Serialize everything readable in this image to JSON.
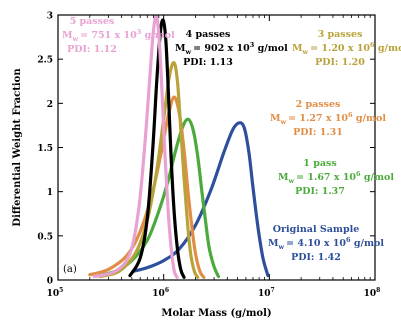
{
  "chart_data": {
    "type": "line",
    "xlabel": "Molar Mass (g/mol)",
    "ylabel": "Differential Weight Fraction",
    "xscale": "log",
    "xlim": [
      100000,
      100000000
    ],
    "ylim": [
      0,
      3
    ],
    "x_ticks": [
      100000,
      1000000,
      10000000,
      100000000
    ],
    "x_tick_labels": [
      "10",
      "10",
      "10",
      "10"
    ],
    "x_tick_exponents": [
      "5",
      "6",
      "7",
      "8"
    ],
    "y_ticks": [
      0,
      0.5,
      1,
      1.5,
      2,
      2.5,
      3
    ],
    "y_tick_labels": [
      "0",
      "0.5",
      "1",
      "1.5",
      "2",
      "2.5",
      "3"
    ],
    "panel_label": "(a)",
    "grid": false,
    "legend": "none",
    "series": [
      {
        "id": "orig",
        "color": "#2e4f9c",
        "annotation": [
          "Original Sample",
          "M",
          "w",
          "= 4.10 x 10",
          "6",
          " g/mol",
          "PDI: 1.42"
        ],
        "points": [
          [
            520000,
            0.1
          ],
          [
            700000,
            0.14
          ],
          [
            1000000,
            0.22
          ],
          [
            1400000,
            0.35
          ],
          [
            2000000,
            0.62
          ],
          [
            2800000,
            1.02
          ],
          [
            3700000,
            1.44
          ],
          [
            4500000,
            1.7
          ],
          [
            5200000,
            1.78
          ],
          [
            5800000,
            1.72
          ],
          [
            6400000,
            1.45
          ],
          [
            7000000,
            1.05
          ],
          [
            7800000,
            0.6
          ],
          [
            8700000,
            0.25
          ],
          [
            9700000,
            0.05
          ]
        ]
      },
      {
        "id": "p1",
        "color": "#4caa3c",
        "annotation": [
          "1 pass",
          "M",
          "w",
          "= 1.67 x 10",
          "6",
          " g/mol",
          "PDI: 1.37"
        ],
        "points": [
          [
            240000,
            0.05
          ],
          [
            350000,
            0.1
          ],
          [
            500000,
            0.22
          ],
          [
            700000,
            0.45
          ],
          [
            900000,
            0.78
          ],
          [
            1100000,
            1.12
          ],
          [
            1300000,
            1.47
          ],
          [
            1500000,
            1.72
          ],
          [
            1700000,
            1.82
          ],
          [
            1900000,
            1.7
          ],
          [
            2100000,
            1.4
          ],
          [
            2300000,
            1.0
          ],
          [
            2500000,
            0.65
          ],
          [
            2700000,
            0.36
          ],
          [
            3000000,
            0.15
          ],
          [
            3300000,
            0.04
          ]
        ]
      },
      {
        "id": "p2",
        "color": "#e08e45",
        "annotation": [
          "2 passes",
          "M",
          "w",
          "= 1.27 x 10",
          "6",
          " g/mol",
          "PDI: 1.31"
        ],
        "points": [
          [
            200000,
            0.06
          ],
          [
            300000,
            0.12
          ],
          [
            450000,
            0.28
          ],
          [
            600000,
            0.55
          ],
          [
            780000,
            0.98
          ],
          [
            950000,
            1.45
          ],
          [
            1100000,
            1.85
          ],
          [
            1250000,
            2.07
          ],
          [
            1400000,
            1.9
          ],
          [
            1550000,
            1.5
          ],
          [
            1700000,
            1.0
          ],
          [
            1850000,
            0.6
          ],
          [
            2000000,
            0.3
          ],
          [
            2200000,
            0.1
          ],
          [
            2400000,
            0.03
          ]
        ]
      },
      {
        "id": "p3",
        "color": "#b8a23a",
        "annotation": [
          "3 passes",
          "M",
          "w",
          "= 1.20 x 10",
          "6",
          " g/mol",
          "PDI: 1.20"
        ],
        "points": [
          [
            250000,
            0.04
          ],
          [
            380000,
            0.1
          ],
          [
            550000,
            0.32
          ],
          [
            700000,
            0.68
          ],
          [
            850000,
            1.2
          ],
          [
            1000000,
            1.82
          ],
          [
            1130000,
            2.3
          ],
          [
            1250000,
            2.46
          ],
          [
            1350000,
            2.25
          ],
          [
            1450000,
            1.72
          ],
          [
            1560000,
            1.15
          ],
          [
            1680000,
            0.65
          ],
          [
            1800000,
            0.3
          ],
          [
            1950000,
            0.1
          ],
          [
            2100000,
            0.03
          ]
        ]
      },
      {
        "id": "p4",
        "color": "#000000",
        "annotation": [
          "4 passes",
          "M",
          "w",
          "= 902 x 10",
          "3",
          " g/mol",
          "PDI: 1.13"
        ],
        "points": [
          [
            480000,
            0.05
          ],
          [
            600000,
            0.25
          ],
          [
            700000,
            0.7
          ],
          [
            790000,
            1.5
          ],
          [
            860000,
            2.25
          ],
          [
            930000,
            2.8
          ],
          [
            990000,
            2.94
          ],
          [
            1050000,
            2.7
          ],
          [
            1110000,
            2.1
          ],
          [
            1180000,
            1.35
          ],
          [
            1260000,
            0.75
          ],
          [
            1350000,
            0.35
          ],
          [
            1450000,
            0.12
          ],
          [
            1560000,
            0.03
          ]
        ]
      },
      {
        "id": "p5",
        "color": "#e8a2d2",
        "annotation": [
          "5 passes",
          "M",
          "w",
          "= 751 x 10",
          "3",
          " g/mol",
          "PDI: 1.12"
        ],
        "points": [
          [
            220000,
            0.04
          ],
          [
            350000,
            0.1
          ],
          [
            480000,
            0.3
          ],
          [
            580000,
            0.8
          ],
          [
            660000,
            1.5
          ],
          [
            730000,
            2.2
          ],
          [
            790000,
            2.75
          ],
          [
            840000,
            2.98
          ],
          [
            890000,
            2.85
          ],
          [
            950000,
            2.3
          ],
          [
            1020000,
            1.5
          ],
          [
            1100000,
            0.8
          ],
          [
            1180000,
            0.35
          ],
          [
            1260000,
            0.1
          ],
          [
            1340000,
            0.03
          ]
        ]
      }
    ]
  }
}
